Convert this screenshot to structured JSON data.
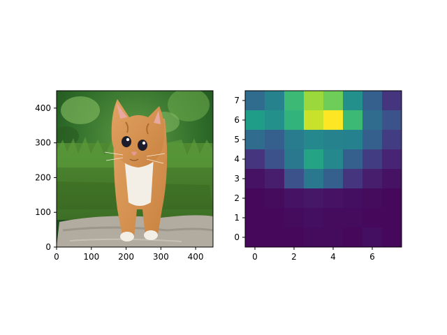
{
  "chart_data": [
    {
      "type": "image",
      "subject": "kitten",
      "xlim": [
        0,
        450
      ],
      "ylim": [
        450,
        0
      ],
      "x_ticks": [
        0,
        100,
        200,
        300,
        400
      ],
      "y_ticks": [
        0,
        100,
        200,
        300,
        400
      ],
      "x_tick_labels": [
        "0",
        "100",
        "200",
        "300",
        "400"
      ],
      "y_tick_labels": [
        "0",
        "100",
        "200",
        "300",
        "400"
      ]
    },
    {
      "type": "heatmap",
      "colormap": "viridis",
      "xlim": [
        -0.5,
        7.5
      ],
      "ylim": [
        7.5,
        -0.5
      ],
      "x_ticks": [
        0,
        2,
        4,
        6
      ],
      "y_ticks": [
        0,
        1,
        2,
        3,
        4,
        5,
        6,
        7
      ],
      "x_tick_labels": [
        "0",
        "2",
        "4",
        "6"
      ],
      "y_tick_labels": [
        "0",
        "1",
        "2",
        "3",
        "4",
        "5",
        "6",
        "7"
      ],
      "values": [
        [
          0.35,
          0.45,
          0.68,
          0.85,
          0.78,
          0.5,
          0.3,
          0.15
        ],
        [
          0.55,
          0.5,
          0.65,
          0.92,
          1.0,
          0.68,
          0.35,
          0.25
        ],
        [
          0.35,
          0.3,
          0.42,
          0.47,
          0.45,
          0.44,
          0.3,
          0.18
        ],
        [
          0.15,
          0.25,
          0.4,
          0.58,
          0.47,
          0.3,
          0.18,
          0.1
        ],
        [
          0.05,
          0.08,
          0.25,
          0.4,
          0.3,
          0.15,
          0.08,
          0.05
        ],
        [
          0.02,
          0.03,
          0.05,
          0.06,
          0.05,
          0.04,
          0.03,
          0.02
        ],
        [
          0.02,
          0.02,
          0.03,
          0.04,
          0.03,
          0.03,
          0.02,
          0.02
        ],
        [
          0.02,
          0.02,
          0.02,
          0.03,
          0.03,
          0.02,
          0.04,
          0.02
        ]
      ]
    }
  ]
}
